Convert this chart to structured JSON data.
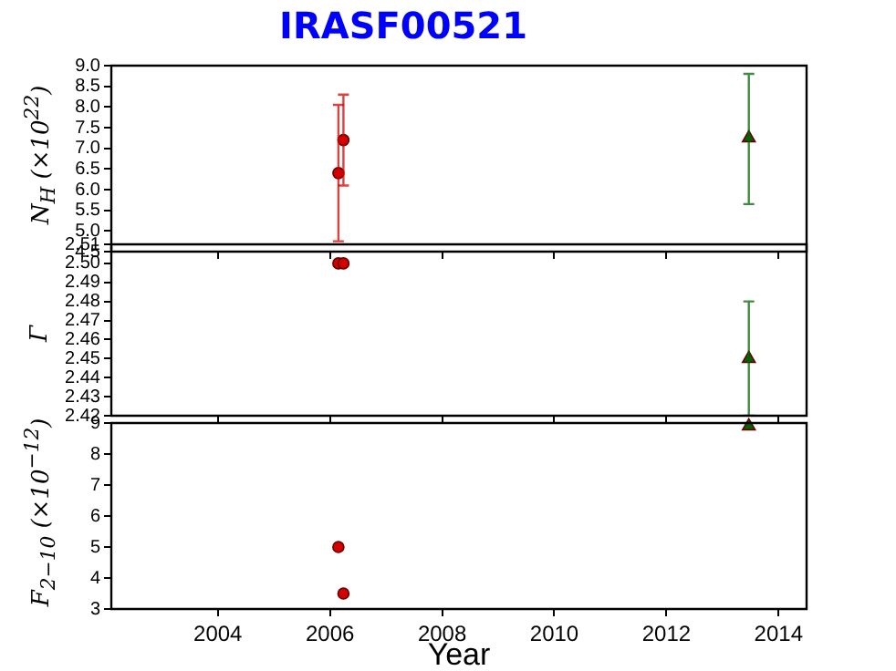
{
  "chart_data": [
    {
      "type": "scatter",
      "title": "IRASF00521",
      "ylabel": "N$_{H}$ (×10$^{22}$)",
      "xlim": [
        2002.1,
        2014.5
      ],
      "xticks": [
        2004,
        2006,
        2008,
        2010,
        2012,
        2014
      ],
      "ylim": [
        4.5,
        9.0
      ],
      "yticks": [
        4.5,
        {
          "value": 5,
          "label": "5.0"
        },
        5.5,
        {
          "value": 6,
          "label": "6.0"
        },
        6.5,
        {
          "value": 7,
          "label": "7.0"
        },
        7.5,
        {
          "value": 8,
          "label": "8.0"
        },
        8.5,
        {
          "value": 9,
          "label": "9.0"
        }
      ],
      "tick_labels": "y",
      "grid": false,
      "legend": false,
      "series": [
        {
          "color": "#d40000",
          "marker": "circle",
          "x": [
            2006.15,
            2006.24
          ],
          "values": [
            6.4,
            7.2
          ],
          "errors": [
            [
              4.75,
              8.05
            ],
            [
              6.1,
              8.3
            ]
          ]
        },
        {
          "color": "#006400",
          "marker": "triangle",
          "x": [
            2013.47
          ],
          "values": [
            7.25
          ],
          "errors": [
            [
              5.65,
              8.8
            ]
          ]
        }
      ]
    },
    {
      "type": "scatter",
      "ylabel": "Γ",
      "xlim": [
        2002.1,
        2014.5
      ],
      "xticks": [
        2004,
        2006,
        2008,
        2010,
        2012,
        2014
      ],
      "ylim": [
        2.42,
        2.51
      ],
      "yticks": [
        2.42,
        2.43,
        2.44,
        2.45,
        2.46,
        2.47,
        2.48,
        2.49,
        {
          "value": 2.5,
          "label": "2.50"
        },
        2.51
      ],
      "tick_labels": "y",
      "grid": false,
      "legend": false,
      "series": [
        {
          "color": "#d40000",
          "marker": "circle",
          "x": [
            2006.15,
            2006.24
          ],
          "values": [
            2.5,
            2.5
          ]
        },
        {
          "color": "#006400",
          "marker": "triangle",
          "x": [
            2013.47
          ],
          "values": [
            2.45
          ],
          "errors": [
            [
              2.42,
              2.48
            ]
          ]
        }
      ]
    },
    {
      "type": "scatter",
      "ylabel": "F$_{2−10}$ (×10$^{−12}$)",
      "xlabel": "Year",
      "xlim": [
        2002.1,
        2014.5
      ],
      "xticks": [
        2004,
        2006,
        2008,
        2010,
        2012,
        2014
      ],
      "ylim": [
        3,
        9
      ],
      "yticks": [
        3,
        4,
        5,
        6,
        7,
        8,
        9
      ],
      "grid": false,
      "legend": false,
      "series": [
        {
          "color": "#d40000",
          "marker": "circle",
          "x": [
            2006.15,
            2006.24
          ],
          "values": [
            5.0,
            3.5
          ]
        },
        {
          "color": "#006400",
          "marker": "triangle",
          "x": [
            2013.47
          ],
          "values": [
            8.9
          ]
        }
      ]
    }
  ]
}
